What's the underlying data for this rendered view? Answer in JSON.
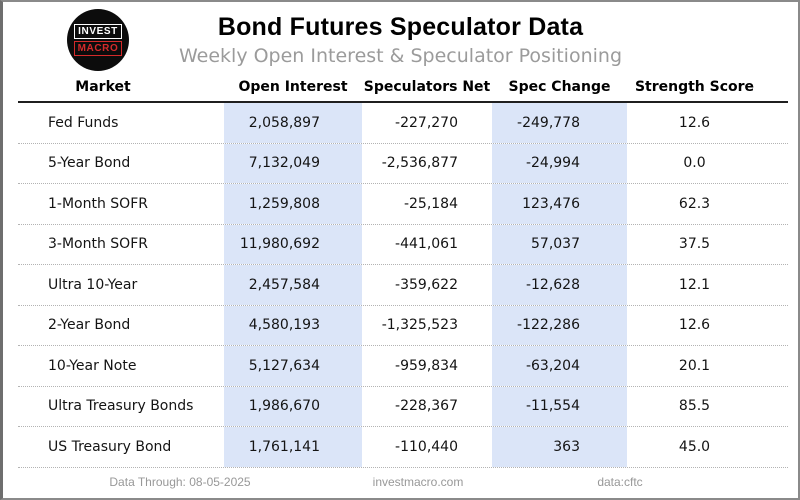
{
  "header": {
    "logo": {
      "line1": "INVEST",
      "line2": "MACRO"
    },
    "title": "Bond Futures Speculator Data",
    "subtitle": "Weekly Open Interest & Speculator Positioning"
  },
  "table": {
    "columns": [
      "Market",
      "Open Interest",
      "Speculators Net",
      "Spec Change",
      "Strength Score"
    ],
    "rows": [
      {
        "market": "Fed Funds",
        "open_interest": "2,058,897",
        "speculators_net": "-227,270",
        "spec_change": "-249,778",
        "strength_score": "12.6"
      },
      {
        "market": "5-Year Bond",
        "open_interest": "7,132,049",
        "speculators_net": "-2,536,877",
        "spec_change": "-24,994",
        "strength_score": "0.0"
      },
      {
        "market": "1-Month SOFR",
        "open_interest": "1,259,808",
        "speculators_net": "-25,184",
        "spec_change": "123,476",
        "strength_score": "62.3"
      },
      {
        "market": "3-Month SOFR",
        "open_interest": "11,980,692",
        "speculators_net": "-441,061",
        "spec_change": "57,037",
        "strength_score": "37.5"
      },
      {
        "market": "Ultra 10-Year",
        "open_interest": "2,457,584",
        "speculators_net": "-359,622",
        "spec_change": "-12,628",
        "strength_score": "12.1"
      },
      {
        "market": "2-Year Bond",
        "open_interest": "4,580,193",
        "speculators_net": "-1,325,523",
        "spec_change": "-122,286",
        "strength_score": "12.6"
      },
      {
        "market": "10-Year Note",
        "open_interest": "5,127,634",
        "speculators_net": "-959,834",
        "spec_change": "-63,204",
        "strength_score": "20.1"
      },
      {
        "market": "Ultra Treasury Bonds",
        "open_interest": "1,986,670",
        "speculators_net": "-228,367",
        "spec_change": "-11,554",
        "strength_score": "85.5"
      },
      {
        "market": "US Treasury Bond",
        "open_interest": "1,761,141",
        "speculators_net": "-110,440",
        "spec_change": "363",
        "strength_score": "45.0"
      }
    ]
  },
  "footer": {
    "data_through": "Data Through: 08-05-2025",
    "site": "investmacro.com",
    "source": "data:cftc"
  },
  "colors": {
    "highlight_column": "#dbe5f8",
    "accent_red": "#d42a2a",
    "subtitle_gray": "#9b9b9b",
    "border_gray": "#8a8a8a"
  },
  "chart_data": {
    "type": "table",
    "title": "Bond Futures Speculator Data",
    "subtitle": "Weekly Open Interest & Speculator Positioning",
    "columns": [
      "Market",
      "Open Interest",
      "Speculators Net",
      "Spec Change",
      "Strength Score"
    ],
    "rows": [
      [
        "Fed Funds",
        2058897,
        -227270,
        -249778,
        12.6
      ],
      [
        "5-Year Bond",
        7132049,
        -2536877,
        -24994,
        0.0
      ],
      [
        "1-Month SOFR",
        1259808,
        -25184,
        123476,
        62.3
      ],
      [
        "3-Month SOFR",
        11980692,
        -441061,
        57037,
        37.5
      ],
      [
        "Ultra 10-Year",
        2457584,
        -359622,
        -12628,
        12.1
      ],
      [
        "2-Year Bond",
        4580193,
        -1325523,
        -122286,
        12.6
      ],
      [
        "10-Year Note",
        5127634,
        -959834,
        -63204,
        20.1
      ],
      [
        "Ultra Treasury Bonds",
        1986670,
        -228367,
        -11554,
        85.5
      ],
      [
        "US Treasury Bond",
        1761141,
        -110440,
        363,
        45.0
      ]
    ],
    "notes": [
      "Open Interest and Spec Change columns are highlighted light blue"
    ],
    "source": "data:cftc",
    "data_through": "08-05-2025"
  }
}
